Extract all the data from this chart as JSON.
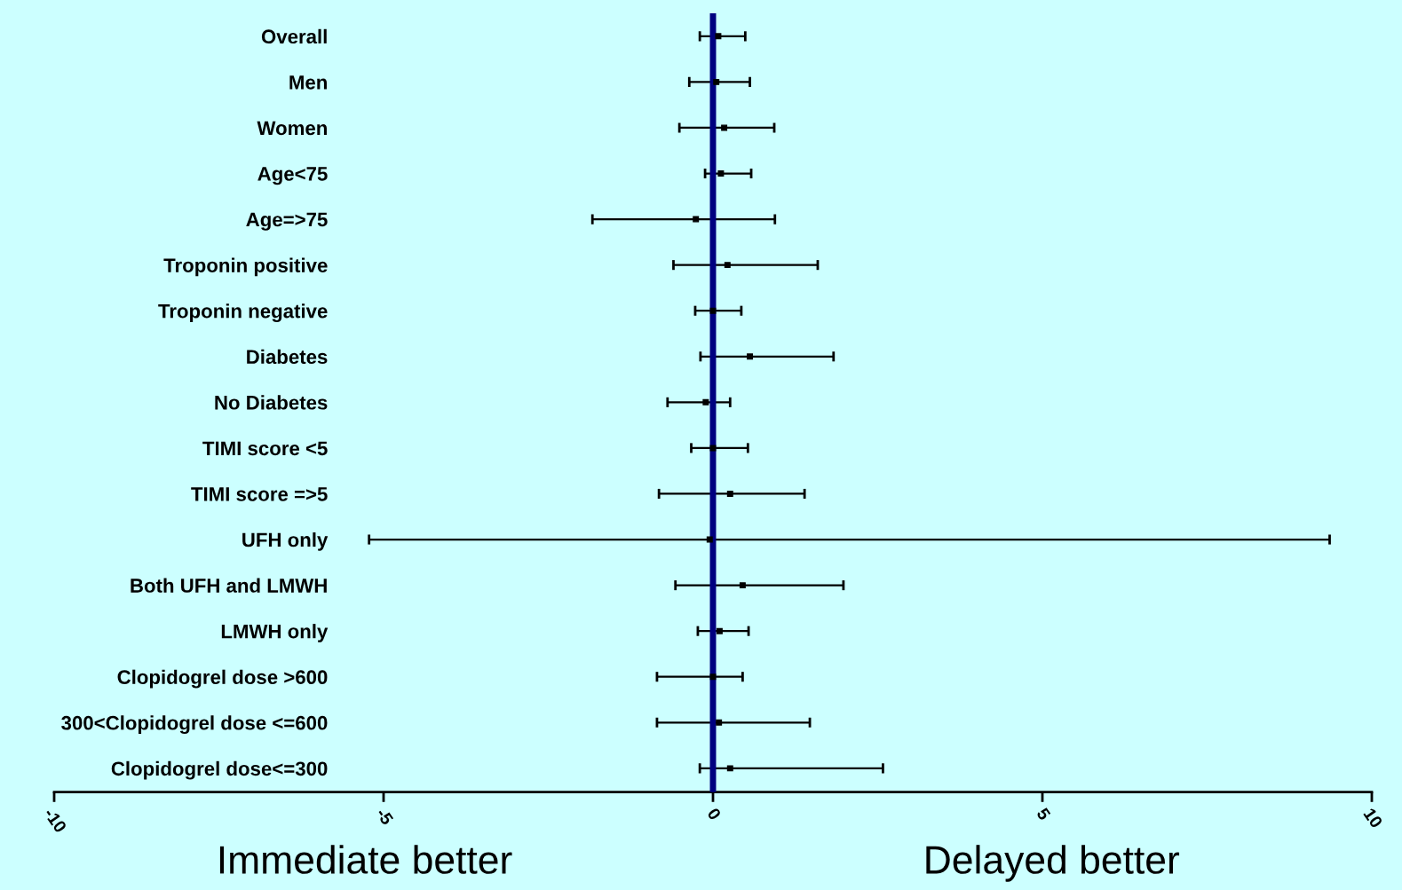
{
  "chart_data": {
    "type": "scatter",
    "orientation": "horizontal",
    "marker": "square",
    "categories": [
      "Overall",
      "Men",
      "Women",
      "Age<75",
      "Age=>75",
      "Troponin positive",
      "Troponin negative",
      "Diabetes",
      "No Diabetes",
      "TIMI score <5",
      "TIMI score =>5",
      "UFH only",
      "Both UFH and LMWH",
      "LMWH only",
      "Clopidogrel dose >600",
      "300<Clopidogrel dose <=600",
      "Clopidogrel dose<=300"
    ],
    "values": [
      0.08,
      0.05,
      0.17,
      0.12,
      -0.26,
      0.22,
      0.0,
      0.56,
      -0.11,
      0.0,
      0.26,
      -0.05,
      0.45,
      0.1,
      0.0,
      0.09,
      0.26
    ],
    "errors": [
      [
        -0.2,
        0.49
      ],
      [
        -0.36,
        0.56
      ],
      [
        -0.51,
        0.93
      ],
      [
        -0.12,
        0.58
      ],
      [
        -1.83,
        0.94
      ],
      [
        -0.6,
        1.59
      ],
      [
        -0.27,
        0.43
      ],
      [
        -0.19,
        1.83
      ],
      [
        -0.69,
        0.26
      ],
      [
        -0.33,
        0.53
      ],
      [
        -0.82,
        1.39
      ],
      [
        -5.22,
        9.36
      ],
      [
        -0.57,
        1.98
      ],
      [
        -0.23,
        0.54
      ],
      [
        -0.85,
        0.45
      ],
      [
        -0.85,
        1.47
      ],
      [
        -0.2,
        2.58
      ]
    ],
    "color": "#000000",
    "xlim": [
      -10,
      10
    ],
    "xticks": [
      -10,
      -5,
      0,
      5,
      10
    ],
    "ref_lines": [
      {
        "axis": "x",
        "value": 0,
        "color": "#000080"
      }
    ],
    "annotations": [
      "Immediate better",
      "Delayed better"
    ],
    "grid": false,
    "legend": false
  }
}
